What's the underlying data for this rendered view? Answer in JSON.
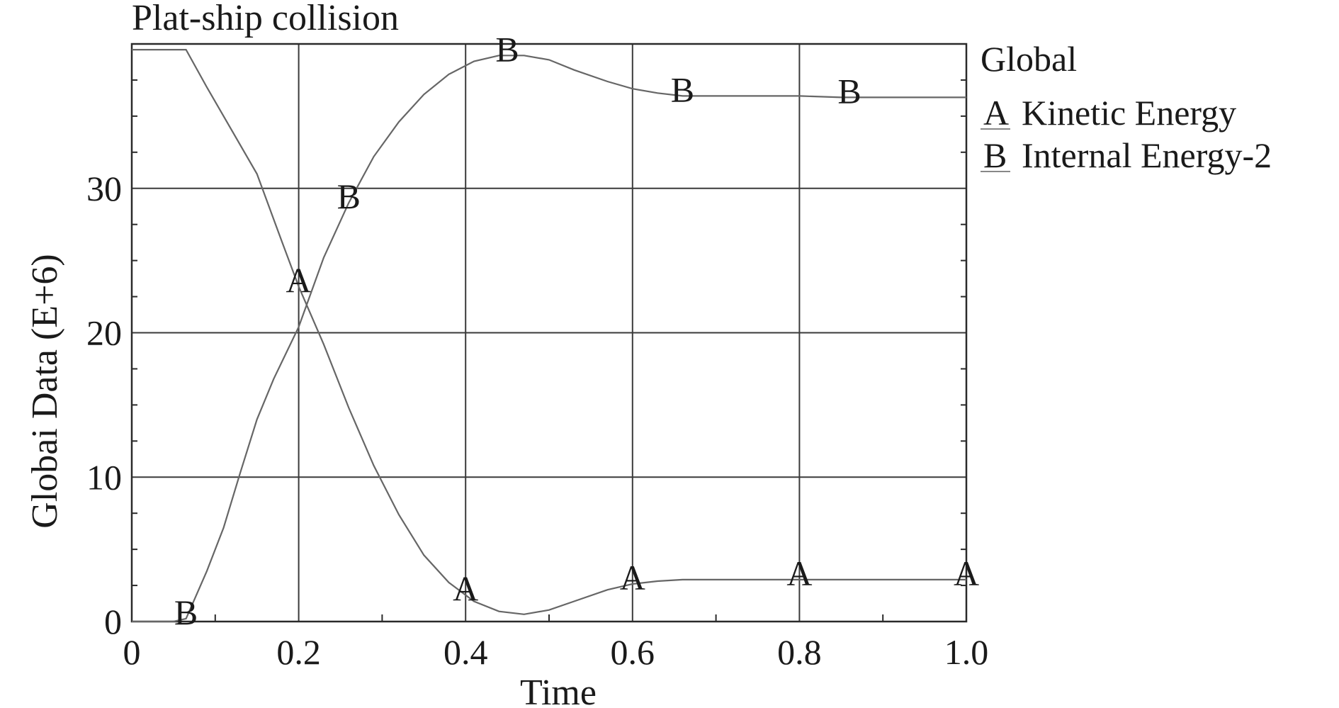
{
  "chart_data": {
    "type": "line",
    "title": "Plat-ship collision",
    "xlabel": "Time",
    "ylabel": "Globai Data (E+6)",
    "xlim": [
      0,
      1.0
    ],
    "ylim": [
      0,
      40
    ],
    "x_ticks": [
      {
        "value": 0,
        "label": "0"
      },
      {
        "value": 0.2,
        "label": "0.2"
      },
      {
        "value": 0.4,
        "label": "0.4"
      },
      {
        "value": 0.6,
        "label": "0.6"
      },
      {
        "value": 0.8,
        "label": "0.8"
      },
      {
        "value": 1.0,
        "label": "1.0"
      }
    ],
    "y_ticks": [
      {
        "value": 0,
        "label": "0"
      },
      {
        "value": 10,
        "label": "10"
      },
      {
        "value": 20,
        "label": "20"
      },
      {
        "value": 30,
        "label": "30"
      }
    ],
    "grid": true,
    "legend": {
      "position": "right",
      "title": "Global",
      "entries": [
        {
          "marker": "A",
          "label": "Kinetic Energy"
        },
        {
          "marker": "B",
          "label": "Internal Energy-2"
        }
      ]
    },
    "series": [
      {
        "name": "Kinetic Energy",
        "marker": "A",
        "color": "#666666",
        "x": [
          0,
          0.03,
          0.05,
          0.065,
          0.09,
          0.12,
          0.15,
          0.18,
          0.2,
          0.23,
          0.26,
          0.29,
          0.32,
          0.35,
          0.38,
          0.41,
          0.44,
          0.47,
          0.5,
          0.53,
          0.57,
          0.6,
          0.63,
          0.66,
          0.7,
          0.75,
          0.8,
          0.85,
          0.9,
          0.95,
          1.0
        ],
        "y": [
          39.6,
          39.6,
          39.6,
          39.6,
          37.0,
          34.0,
          31.0,
          26.3,
          23.2,
          19.2,
          14.8,
          10.8,
          7.4,
          4.6,
          2.7,
          1.4,
          0.7,
          0.5,
          0.8,
          1.4,
          2.2,
          2.6,
          2.8,
          2.9,
          2.9,
          2.9,
          2.9,
          2.9,
          2.9,
          2.9,
          2.9
        ],
        "marker_x": [
          0.2,
          0.4,
          0.6,
          0.8,
          1.0
        ]
      },
      {
        "name": "Internal Energy-2",
        "marker": "B",
        "color": "#666666",
        "x": [
          0,
          0.05,
          0.065,
          0.09,
          0.11,
          0.13,
          0.15,
          0.17,
          0.2,
          0.23,
          0.26,
          0.29,
          0.32,
          0.35,
          0.38,
          0.41,
          0.44,
          0.47,
          0.5,
          0.53,
          0.57,
          0.6,
          0.63,
          0.66,
          0.7,
          0.75,
          0.8,
          0.85,
          0.9,
          0.95,
          1.0
        ],
        "y": [
          0,
          0,
          0.2,
          3.5,
          6.5,
          10.3,
          14.0,
          16.8,
          20.4,
          25.2,
          29.0,
          32.2,
          34.6,
          36.5,
          37.9,
          38.8,
          39.2,
          39.2,
          38.9,
          38.2,
          37.4,
          36.9,
          36.6,
          36.4,
          36.4,
          36.4,
          36.4,
          36.3,
          36.3,
          36.3,
          36.3
        ],
        "marker_x": [
          0.065,
          0.26,
          0.45,
          0.66,
          0.86
        ]
      }
    ]
  }
}
